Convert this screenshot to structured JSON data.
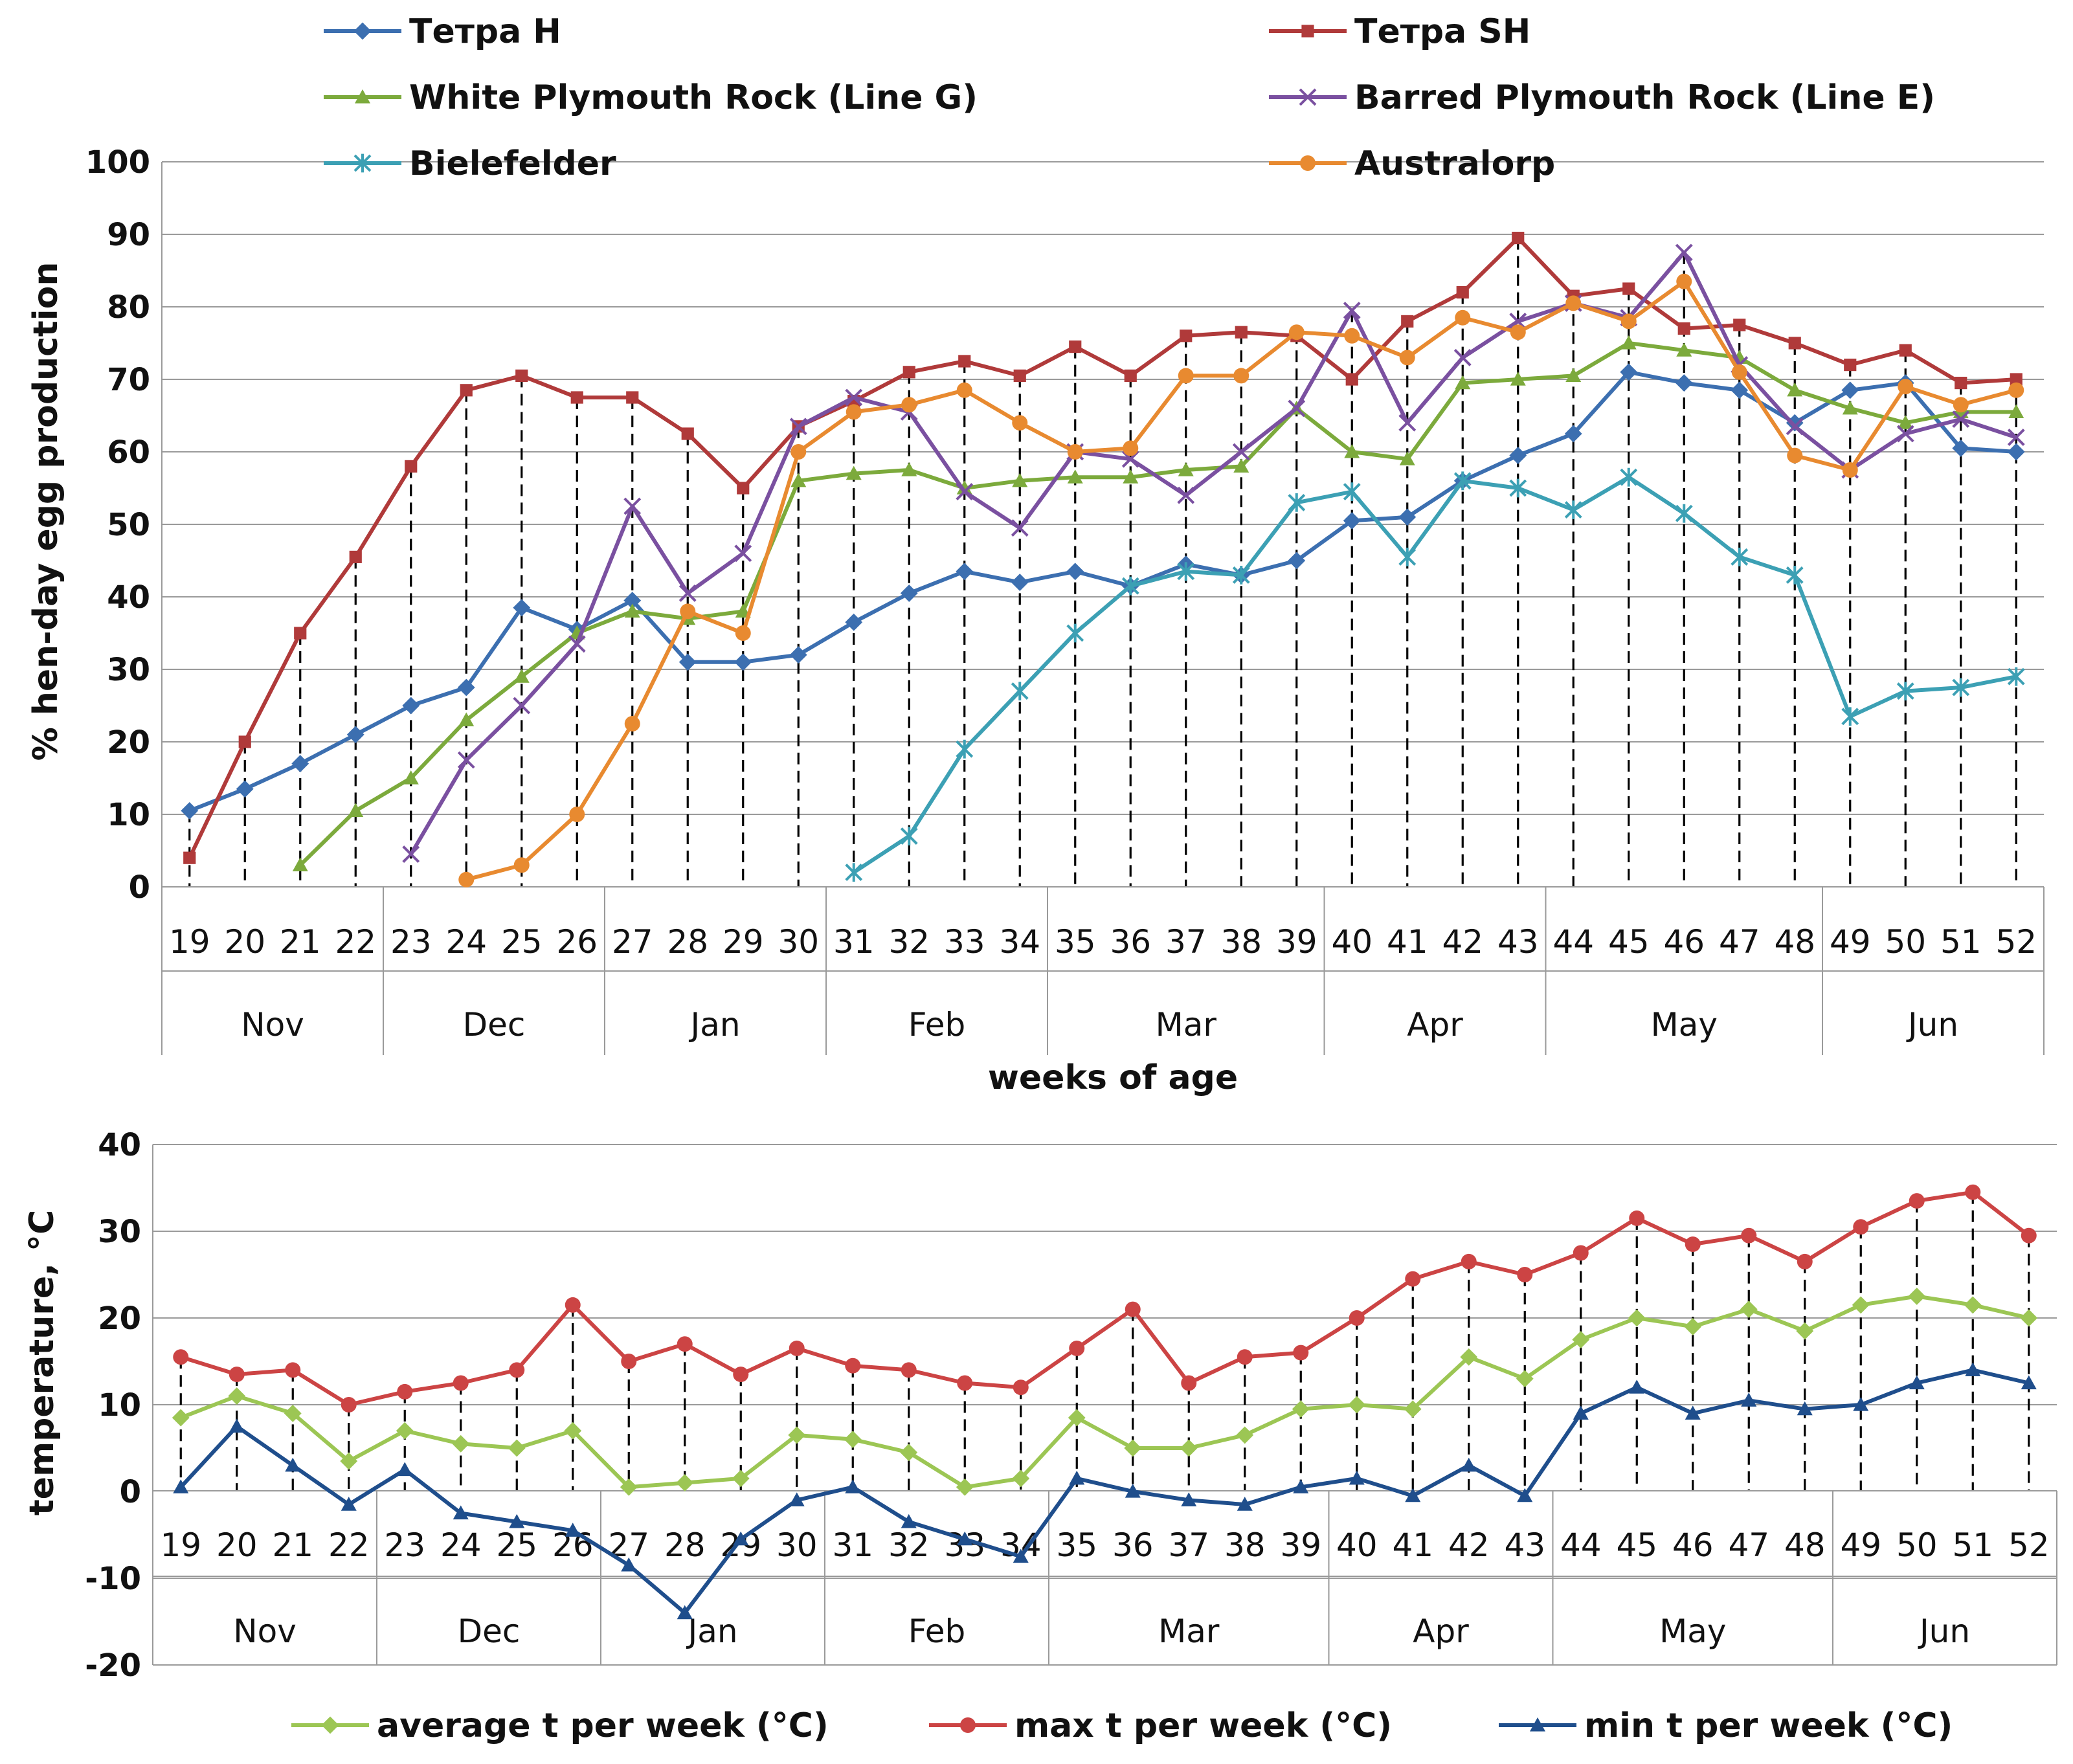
{
  "chart_data": [
    {
      "type": "line",
      "ylabel": "% hen-day egg production",
      "xlabel": "weeks of age",
      "ylim": [
        0,
        100
      ],
      "yticks": [
        0,
        10,
        20,
        30,
        40,
        50,
        60,
        70,
        80,
        90,
        100
      ],
      "x": [
        19,
        20,
        21,
        22,
        23,
        24,
        25,
        26,
        27,
        28,
        29,
        30,
        31,
        32,
        33,
        34,
        35,
        36,
        37,
        38,
        39,
        40,
        41,
        42,
        43,
        44,
        45,
        46,
        47,
        48,
        49,
        50,
        51,
        52
      ],
      "months": [
        {
          "label": "Nov",
          "weeks": 4
        },
        {
          "label": "Dec",
          "weeks": 4
        },
        {
          "label": "Jan",
          "weeks": 4
        },
        {
          "label": "Feb",
          "weeks": 4
        },
        {
          "label": "Mar",
          "weeks": 5
        },
        {
          "label": "Apr",
          "weeks": 4
        },
        {
          "label": "May",
          "weeks": 5
        },
        {
          "label": "Jun",
          "weeks": 4
        }
      ],
      "legend_position": "top",
      "series": [
        {
          "name": "Тетра H",
          "color": "#3C6FB0",
          "marker": "diamond",
          "values": [
            10.5,
            13.5,
            17,
            21,
            25,
            27.5,
            38.5,
            35.5,
            39.5,
            31,
            31,
            32,
            36.5,
            40.5,
            43.5,
            42,
            43.5,
            41.5,
            44.5,
            43,
            45,
            50.5,
            51,
            56,
            59.5,
            62.5,
            71,
            69.5,
            68.5,
            64,
            68.5,
            69.5,
            60.5,
            60
          ]
        },
        {
          "name": "Тетра SH",
          "color": "#B03A3A",
          "marker": "square",
          "values": [
            4,
            20,
            35,
            45.5,
            58,
            68.5,
            70.5,
            67.5,
            67.5,
            62.5,
            55,
            63.5,
            67,
            71,
            72.5,
            70.5,
            74.5,
            70.5,
            76,
            76.5,
            76,
            70,
            78,
            82,
            89.5,
            81.5,
            82.5,
            77,
            77.5,
            75,
            72,
            74,
            69.5,
            70
          ]
        },
        {
          "name": "White Plymouth Rock (Line G)",
          "color": "#7CAA3C",
          "marker": "triangle",
          "values": [
            null,
            null,
            3,
            10.5,
            15,
            23,
            29,
            35,
            38,
            37,
            38,
            56,
            57,
            57.5,
            55,
            56,
            56.5,
            56.5,
            57.5,
            58,
            66,
            60,
            59,
            69.5,
            70,
            70.5,
            75,
            74,
            73,
            68.5,
            66,
            64,
            65.5,
            65.5
          ]
        },
        {
          "name": "Barred Plymouth Rock (Line E)",
          "color": "#7A50A0",
          "marker": "x",
          "values": [
            null,
            null,
            null,
            null,
            4.5,
            17.5,
            25,
            33.5,
            52.5,
            40.5,
            46,
            63.5,
            67.5,
            65.5,
            54.5,
            49.5,
            60,
            59,
            54,
            60,
            66,
            79.5,
            64,
            73,
            78,
            80.5,
            78.5,
            87.5,
            72,
            63.5,
            57.5,
            62.5,
            64.5,
            62
          ]
        },
        {
          "name": "Bielefelder",
          "color": "#3CA0B4",
          "marker": "star",
          "values": [
            null,
            null,
            null,
            null,
            null,
            null,
            null,
            null,
            null,
            null,
            null,
            null,
            2,
            7,
            19,
            27,
            35,
            41.5,
            43.5,
            43,
            53,
            54.5,
            45.5,
            56,
            55,
            52,
            56.5,
            51.5,
            45.5,
            43,
            23.5,
            27,
            27.5,
            29
          ]
        },
        {
          "name": "Australorp",
          "color": "#E88A30",
          "marker": "circle",
          "values": [
            null,
            null,
            null,
            null,
            null,
            1,
            3,
            10,
            22.5,
            38,
            35,
            60,
            65.5,
            66.5,
            68.5,
            64,
            60,
            60.5,
            70.5,
            70.5,
            76.5,
            76,
            73,
            78.5,
            76.5,
            80.5,
            78,
            83.5,
            71,
            59.5,
            57.5,
            69,
            66.5,
            68.5
          ]
        }
      ]
    },
    {
      "type": "line",
      "ylabel": "temperature, °C",
      "ylim": [
        -20,
        40
      ],
      "yticks": [
        -20,
        -10,
        0,
        10,
        20,
        30,
        40
      ],
      "x": [
        19,
        20,
        21,
        22,
        23,
        24,
        25,
        26,
        27,
        28,
        29,
        30,
        31,
        32,
        33,
        34,
        35,
        36,
        37,
        38,
        39,
        40,
        41,
        42,
        43,
        44,
        45,
        46,
        47,
        48,
        49,
        50,
        51,
        52
      ],
      "legend_position": "bottom",
      "series": [
        {
          "name": "average t per week (°C)",
          "color": "#9CC654",
          "marker": "diamond",
          "values": [
            8.5,
            11,
            9,
            3.5,
            7,
            5.5,
            5,
            7,
            0.5,
            1,
            1.5,
            6.5,
            6,
            4.5,
            0.5,
            1.5,
            8.5,
            5,
            5,
            6.5,
            9.5,
            10,
            9.5,
            15.5,
            13,
            17.5,
            20,
            19,
            21,
            18.5,
            21.5,
            22.5,
            21.5,
            20
          ]
        },
        {
          "name": "max t per week (°C)",
          "color": "#CC4444",
          "marker": "circle",
          "values": [
            15.5,
            13.5,
            14,
            10,
            11.5,
            12.5,
            14,
            21.5,
            15,
            17,
            13.5,
            16.5,
            14.5,
            14,
            12.5,
            12,
            16.5,
            21,
            12.5,
            15.5,
            16,
            20,
            24.5,
            26.5,
            25,
            27.5,
            31.5,
            28.5,
            29.5,
            26.5,
            30.5,
            33.5,
            34.5,
            29.5
          ]
        },
        {
          "name": "min t per week (°C)",
          "color": "#1F4E8C",
          "marker": "triangle",
          "values": [
            0.5,
            7.5,
            3,
            -1.5,
            2.5,
            -2.5,
            -3.5,
            -4.5,
            -8.5,
            -14,
            -5.5,
            -1,
            0.5,
            -3.5,
            -5.5,
            -7.5,
            1.5,
            0,
            -1,
            -1.5,
            0.5,
            1.5,
            -0.5,
            3,
            -0.5,
            9,
            12,
            9,
            10.5,
            9.5,
            10,
            12.5,
            14,
            12.5
          ]
        }
      ]
    }
  ]
}
